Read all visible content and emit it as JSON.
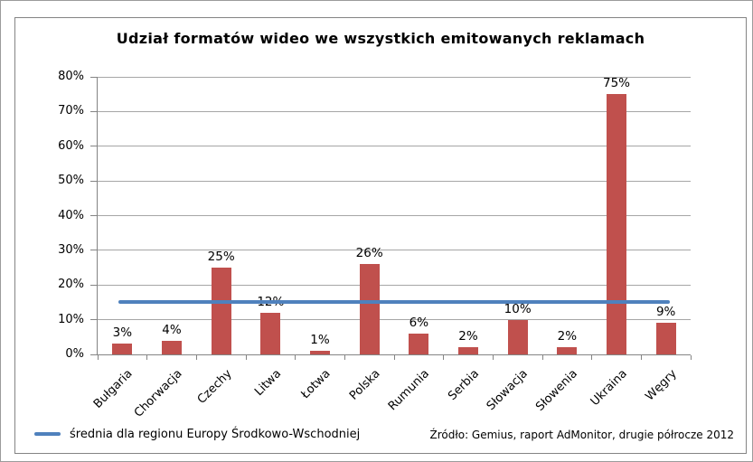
{
  "chart": {
    "title": "Udział formatów wideo we wszystkich emitowanych reklamach",
    "legend": {
      "label": "średnia dla regionu Europy Środkowo-Wschodniej"
    },
    "source": "Źródło: Gemius, raport AdMonitor, drugie półrocze 2012"
  },
  "chart_data": {
    "type": "bar",
    "title": "Udział formatów wideo we wszystkich emitowanych reklamach",
    "categories": [
      "Bułgaria",
      "Chorwacja",
      "Czechy",
      "Litwa",
      "Łotwa",
      "Polska",
      "Rumunia",
      "Serbia",
      "Słowacja",
      "Słowenia",
      "Ukraina",
      "Węgry"
    ],
    "values": [
      3,
      4,
      25,
      12,
      1,
      26,
      6,
      2,
      10,
      2,
      75,
      9
    ],
    "value_labels": [
      "3%",
      "4%",
      "25%",
      "12%",
      "1%",
      "26%",
      "6%",
      "2%",
      "10%",
      "2%",
      "75%",
      "9%"
    ],
    "average_line": {
      "value": 15,
      "label": "średnia dla regionu Europy Środkowo-Wschodniej"
    },
    "xlabel": "",
    "ylabel": "",
    "ylim": [
      0,
      80
    ],
    "ytick_step": 10,
    "ytick_labels": [
      "0%",
      "10%",
      "20%",
      "30%",
      "40%",
      "50%",
      "60%",
      "70%",
      "80%"
    ],
    "grid": true,
    "legend_position": "bottom-left",
    "colors": {
      "bar": "#c0504d",
      "average_line": "#4f81bd",
      "gridline": "#a6a6a6",
      "axis": "#848484",
      "frame_border": "#848484",
      "text": "#000000"
    }
  }
}
